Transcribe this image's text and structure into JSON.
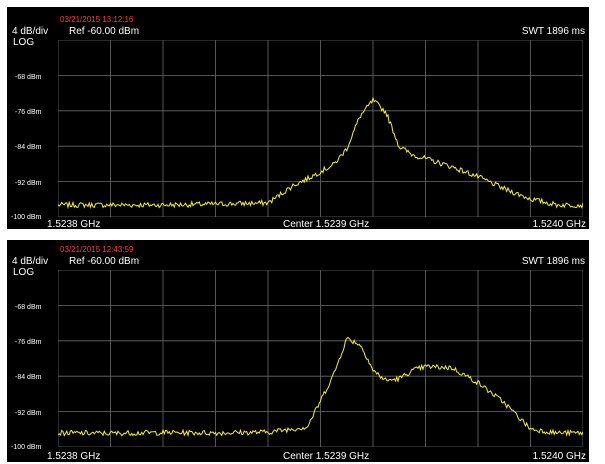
{
  "colors": {
    "trace": "#f4ee3a",
    "grid": "#6a6a6a",
    "background": "#000000",
    "timestamp": "#ff3a3a",
    "text": "#ffffff"
  },
  "chart_data": [
    {
      "type": "line",
      "timestamp": "03/21/2015 13:12:16",
      "scale_label": "4 dB/div",
      "ref_label": "Ref -60.00  dBm",
      "mode_label": "LOG",
      "sweep_label": "SWT 1896 ms",
      "start_label": "1.5238 GHz",
      "center_label": "Center 1.5239 GHz",
      "stop_label": "1.5240 GHz",
      "y_ticks": [
        "-68 dBm",
        "-76 dBm",
        "-84 dBm",
        "-92 dBm",
        "-100 dBm"
      ],
      "ylim": [
        -104,
        -60
      ],
      "xlim": [
        1.5238,
        1.524
      ],
      "series": [
        {
          "x": [
            1.5238,
            1.52382,
            1.52384,
            1.52386,
            1.52388,
            1.52389,
            1.523895,
            1.5239,
            1.523905,
            1.52391,
            1.523915,
            1.52392,
            1.523925,
            1.52393,
            1.523935,
            1.52394,
            1.52395,
            1.52396,
            1.52397,
            1.52398,
            1.52399,
            1.524
          ],
          "y": [
            -101,
            -101,
            -101,
            -100.8,
            -100.5,
            -96,
            -94.5,
            -92.7,
            -91,
            -87,
            -79,
            -75,
            -78,
            -86.5,
            -88.5,
            -89.5,
            -91.5,
            -94,
            -97,
            -99.5,
            -101,
            -101
          ]
        }
      ]
    },
    {
      "type": "line",
      "timestamp": "03/21/2015 12:43:59",
      "scale_label": "4 dB/div",
      "ref_label": "Ref -60.00  dBm",
      "mode_label": "LOG",
      "sweep_label": "SWT 1896 ms",
      "start_label": "1.5238 GHz",
      "center_label": "Center 1.5239 GHz",
      "stop_label": "1.5240 GHz",
      "y_ticks": [
        "-68 dBm",
        "-76 dBm",
        "-84 dBm",
        "-92 dBm",
        "-100 dBm"
      ],
      "ylim": [
        -104,
        -60
      ],
      "xlim": [
        1.5238,
        1.524
      ],
      "series": [
        {
          "x": [
            1.5238,
            1.52382,
            1.52384,
            1.52386,
            1.52388,
            1.523895,
            1.523905,
            1.52391,
            1.523915,
            1.523918,
            1.52392,
            1.523925,
            1.52393,
            1.523935,
            1.52394,
            1.52395,
            1.52396,
            1.52397,
            1.52398,
            1.52399,
            1.524
          ],
          "y": [
            -100.5,
            -100.6,
            -100.4,
            -100.5,
            -100.3,
            -99,
            -86,
            -77,
            -78.5,
            -82,
            -85,
            -87.5,
            -87,
            -85,
            -84,
            -84.3,
            -88,
            -93,
            -99.5,
            -100.5,
            -100.5
          ]
        }
      ]
    }
  ]
}
